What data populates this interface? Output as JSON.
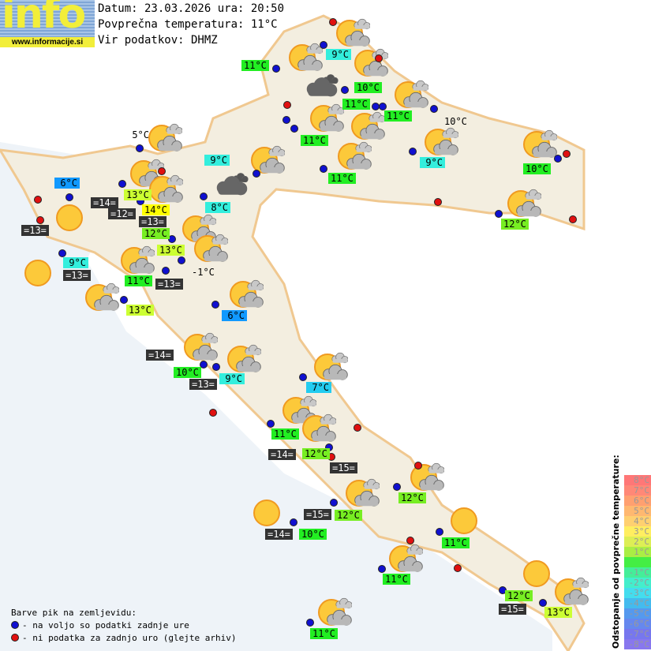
{
  "logo": {
    "text": "info",
    "url": "www.informacije.si"
  },
  "header": {
    "date_line": "Datum: 23.03.2026 ura: 20:50",
    "avg_line": "Povprečna temperatura: 11°C",
    "source_line": "Vir podatkov: DHMZ"
  },
  "colors": {
    "g": "#22ee22",
    "lg": "#77ee22",
    "yg": "#ccff33",
    "y": "#ffff00",
    "c": "#33eedd",
    "lc": "#22ccf0",
    "b": "#1199ff",
    "dark": "#333333"
  },
  "stations": [
    {
      "t": "9°C",
      "c": "c"
    },
    {
      "t": "11°C",
      "c": "g"
    },
    {
      "t": "10°C",
      "c": "g"
    },
    {
      "t": "11°C",
      "c": "g"
    },
    {
      "t": "11°C",
      "c": "g"
    },
    {
      "t": "10°C",
      "c": "plain"
    },
    {
      "t": "11°C",
      "c": "g"
    },
    {
      "t": "5°C",
      "c": "plain"
    },
    {
      "t": "9°C",
      "c": "c"
    },
    {
      "t": "9°C",
      "c": "c"
    },
    {
      "t": "10°C",
      "c": "g"
    },
    {
      "t": "11°C",
      "c": "g"
    },
    {
      "t": "6°C",
      "c": "b"
    },
    {
      "t": "13°C",
      "c": "yg"
    },
    {
      "t": "=14=",
      "c": "dark"
    },
    {
      "t": "8°C",
      "c": "c"
    },
    {
      "t": "=12=",
      "c": "dark"
    },
    {
      "t": "14°C",
      "c": "y"
    },
    {
      "t": "12°C",
      "c": "lg"
    },
    {
      "t": "=13=",
      "c": "dark"
    },
    {
      "t": "12°C",
      "c": "lg"
    },
    {
      "t": "=13=",
      "c": "dark"
    },
    {
      "t": "13°C",
      "c": "yg"
    },
    {
      "t": "9°C",
      "c": "c"
    },
    {
      "t": "=13=",
      "c": "dark"
    },
    {
      "t": "11°C",
      "c": "g"
    },
    {
      "t": "=13=",
      "c": "dark"
    },
    {
      "t": "-1°C",
      "c": "plain"
    },
    {
      "t": "13°C",
      "c": "yg"
    },
    {
      "t": "6°C",
      "c": "b"
    },
    {
      "t": "=14=",
      "c": "dark"
    },
    {
      "t": "10°C",
      "c": "g"
    },
    {
      "t": "9°C",
      "c": "c"
    },
    {
      "t": "=13=",
      "c": "dark"
    },
    {
      "t": "7°C",
      "c": "lc"
    },
    {
      "t": "11°C",
      "c": "g"
    },
    {
      "t": "=14=",
      "c": "dark"
    },
    {
      "t": "12°C",
      "c": "lg"
    },
    {
      "t": "=15=",
      "c": "dark"
    },
    {
      "t": "12°C",
      "c": "lg"
    },
    {
      "t": "12°C",
      "c": "lg"
    },
    {
      "t": "=15=",
      "c": "dark"
    },
    {
      "t": "=14=",
      "c": "dark"
    },
    {
      "t": "10°C",
      "c": "g"
    },
    {
      "t": "11°C",
      "c": "g"
    },
    {
      "t": "11°C",
      "c": "g"
    },
    {
      "t": "12°C",
      "c": "lg"
    },
    {
      "t": "=15=",
      "c": "dark"
    },
    {
      "t": "13°C",
      "c": "yg"
    },
    {
      "t": "11°C",
      "c": "g"
    }
  ],
  "icons": {
    "partly": "partly-cloudy-icon",
    "sun": "sunny-icon",
    "cloudy": "cloudy-icon"
  },
  "legend": {
    "title": "Barve pik na zemljevidu:",
    "blue": "- na voljo so podatki zadnje ure",
    "red": "- ni podatka za zadnjo uro (glejte arhiv)",
    "blue_color": "#1010d0",
    "red_color": "#e01010"
  },
  "scale": {
    "title": "Odstopanje od povprečne temperature:",
    "items": [
      {
        "t": "8°C",
        "c": "#ff7777"
      },
      {
        "t": "7°C",
        "c": "#ff8877"
      },
      {
        "t": "6°C",
        "c": "#ffa070"
      },
      {
        "t": "5°C",
        "c": "#ffb870"
      },
      {
        "t": "4°C",
        "c": "#ffd070"
      },
      {
        "t": "3°C",
        "c": "#ffee60"
      },
      {
        "t": "2°C",
        "c": "#ddee55"
      },
      {
        "t": "1°C",
        "c": "#aaee44"
      },
      {
        "t": "",
        "c": "#44ee44"
      },
      {
        "t": "-1°C",
        "c": "#44ee99"
      },
      {
        "t": "-2°C",
        "c": "#44eecc"
      },
      {
        "t": "-3°C",
        "c": "#44ddee"
      },
      {
        "t": "-4°C",
        "c": "#44bbee"
      },
      {
        "t": "-5°C",
        "c": "#5599ee"
      },
      {
        "t": "-6°C",
        "c": "#6688ee"
      },
      {
        "t": "-7°C",
        "c": "#7777ee"
      },
      {
        "t": "-8°C",
        "c": "#8877ee"
      }
    ]
  }
}
